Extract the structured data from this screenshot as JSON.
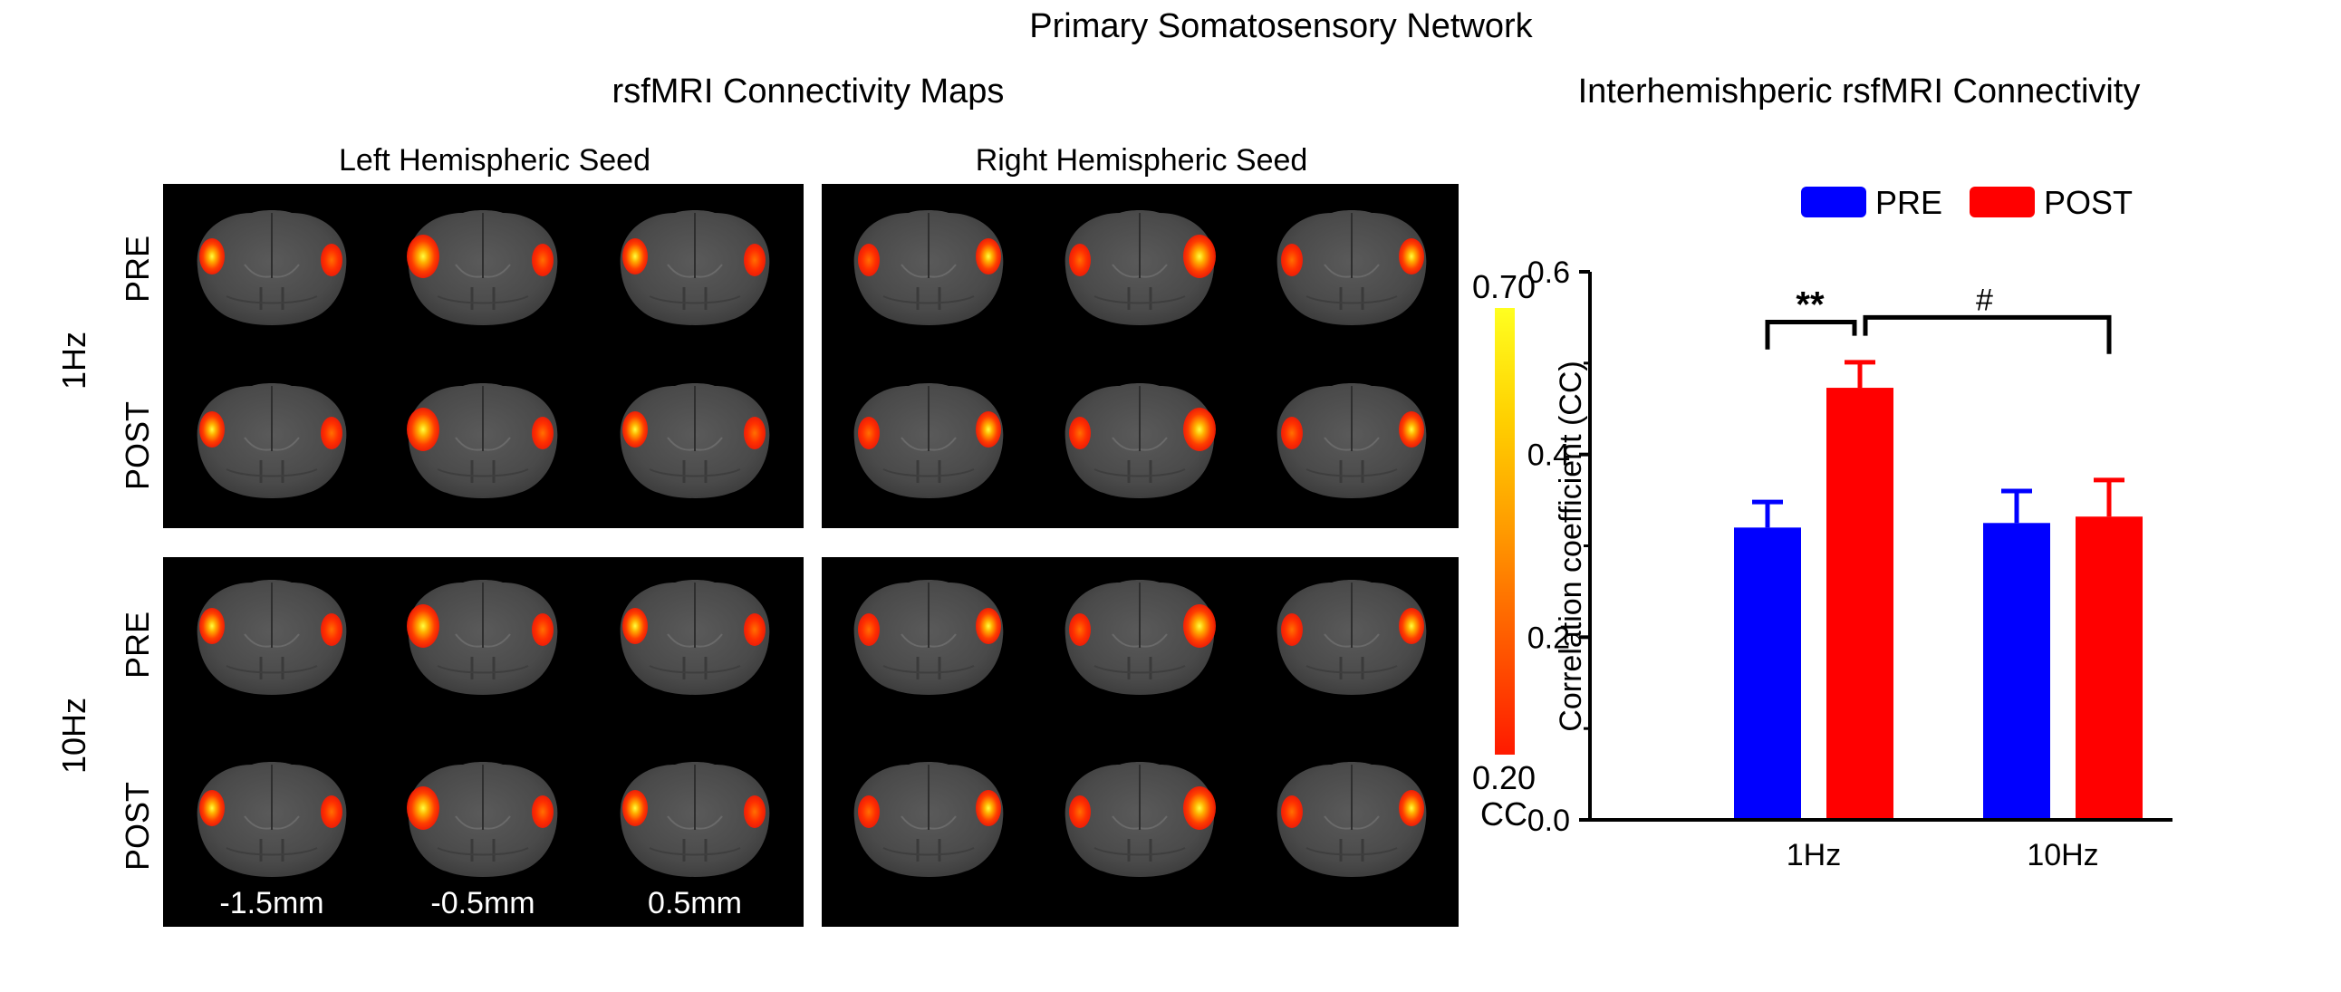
{
  "figure": {
    "title": "Primary Somatosensory Network",
    "maps_title": "rsfMRI Connectivity Maps",
    "bars_title": "Interhemishperic rsfMRI Connectivity"
  },
  "maps": {
    "seed_left": "Left Hemispheric Seed",
    "seed_right": "Right Hemispheric Seed",
    "freq_1hz": "1Hz",
    "freq_10hz": "10Hz",
    "pre": "PRE",
    "post": "POST",
    "slices": [
      "-1.5mm",
      "-0.5mm",
      "0.5mm"
    ],
    "colorbar": {
      "max": "0.70",
      "min": "0.20",
      "unit": "CC",
      "colors": [
        "#ff1a00",
        "#ff5a00",
        "#ff9a00",
        "#ffd000",
        "#ffff20"
      ]
    }
  },
  "chart_data": {
    "type": "bar",
    "title": "Interhemishperic rsfMRI Connectivity",
    "ylabel": "Correlation coefficient (CC)",
    "xlabel": "",
    "categories": [
      "1Hz",
      "10Hz"
    ],
    "series": [
      {
        "name": "PRE",
        "color": "#0000ff",
        "values": [
          0.32,
          0.325
        ],
        "errors": [
          0.028,
          0.035
        ]
      },
      {
        "name": "POST",
        "color": "#ff0000",
        "values": [
          0.473,
          0.332
        ],
        "errors": [
          0.028,
          0.04
        ]
      }
    ],
    "ylim": [
      0,
      0.6
    ],
    "yticks": [
      0.0,
      0.2,
      0.4,
      0.6
    ],
    "ytick_labels": [
      "0.0",
      "0.2",
      "0.4",
      "0.6"
    ],
    "legend_position": "top",
    "grid": false,
    "annotations": [
      {
        "text": "**",
        "between": "1Hz PRE vs 1Hz POST"
      },
      {
        "text": "#",
        "between": "1Hz POST vs 10Hz POST"
      }
    ]
  }
}
